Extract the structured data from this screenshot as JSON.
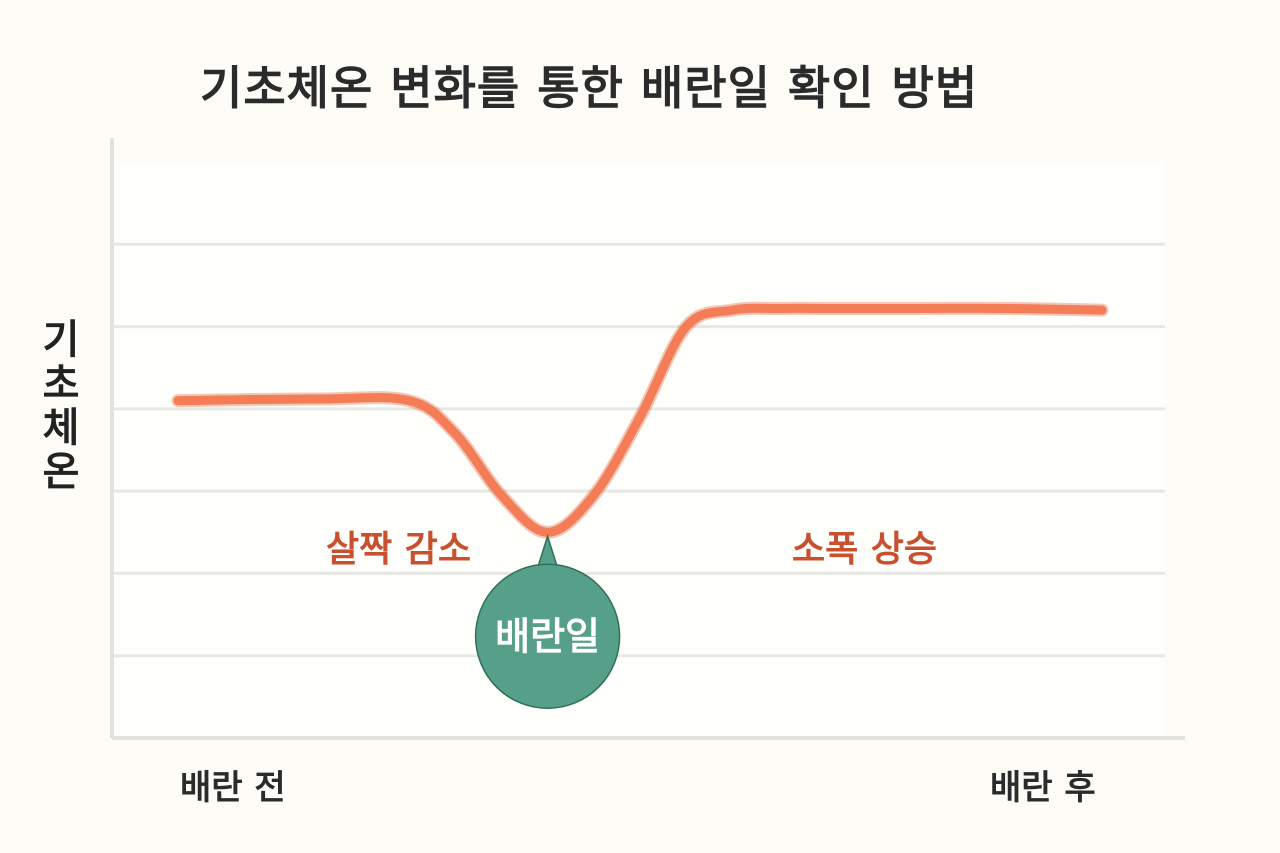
{
  "chart_data": {
    "type": "line",
    "title": "기초체온 변화를 통한 배란일 확인 방법",
    "ylabel": "기초체온",
    "x_tick_labels": [
      "배란 전",
      "배란 후"
    ],
    "series": [
      {
        "x": [
          0,
          0.15,
          0.25,
          0.3,
          0.35,
          0.4,
          0.45,
          0.5,
          0.55,
          0.6,
          0.65,
          0.7,
          0.8,
          0.9,
          1.0
        ],
        "values": [
          4.1,
          4.12,
          4.1,
          3.7,
          2.95,
          2.5,
          2.95,
          3.9,
          5.0,
          5.2,
          5.22,
          5.22,
          5.22,
          5.22,
          5.2
        ]
      }
    ],
    "ylim": [
      0,
      7
    ],
    "xlim": [
      0,
      1
    ],
    "grid": true,
    "line_color": "#f47d57",
    "annotations": {
      "decrease": "살짝 감소",
      "increase": "소폭 상승",
      "marker": "배란일"
    },
    "marker_color": "#56a08a"
  }
}
